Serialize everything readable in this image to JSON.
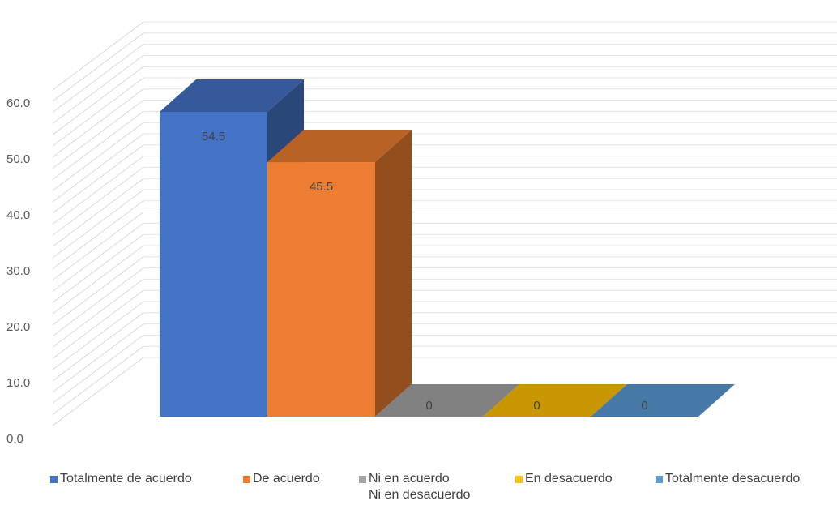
{
  "chart_data": {
    "type": "bar",
    "categories": [
      "Totalmente de acuerdo",
      "De acuerdo",
      "Ni en acuerdo\nNi en desacuerdo",
      "En desacuerdo",
      "Totalmente desacuerdo"
    ],
    "values": [
      54.5,
      45.5,
      0,
      0,
      0
    ],
    "value_labels": [
      "54.5",
      "45.5",
      "0",
      "0",
      "0"
    ],
    "ylim": [
      0,
      60
    ],
    "yticks": [
      "0.0",
      "10.0",
      "20.0",
      "30.0",
      "40.0",
      "50.0",
      "60.0"
    ],
    "grid": true,
    "legend_position": "bottom",
    "colors": [
      "#4472C4",
      "#ED7D31",
      "#A5A5A5",
      "#FFC000",
      "#5B9BD5"
    ],
    "title": "",
    "xlabel": "",
    "ylabel": ""
  }
}
